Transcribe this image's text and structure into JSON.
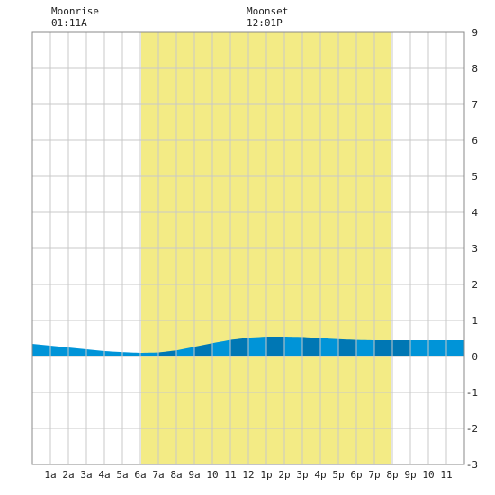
{
  "header": {
    "moonrise_label": "Moonrise",
    "moonrise_time": "01:11A",
    "moonset_label": "Moonset",
    "moonset_time": "12:01P"
  },
  "colors": {
    "daylight": "#f3eb85",
    "tide_light": "#0094d8",
    "tide_dark": "#0077b4",
    "grid": "#c8c8c8",
    "frame": "#888888"
  },
  "chart_data": {
    "type": "area",
    "title": "",
    "xlabel": "",
    "ylabel": "",
    "xlim": [
      0,
      24
    ],
    "ylim": [
      -3,
      9
    ],
    "grid": true,
    "x_tick_labels": [
      {
        "x": 1,
        "label": "1a"
      },
      {
        "x": 2,
        "label": "2a"
      },
      {
        "x": 3,
        "label": "3a"
      },
      {
        "x": 4,
        "label": "4a"
      },
      {
        "x": 5,
        "label": "5a"
      },
      {
        "x": 6,
        "label": "6a"
      },
      {
        "x": 7,
        "label": "7a"
      },
      {
        "x": 8,
        "label": "8a"
      },
      {
        "x": 9,
        "label": "9a"
      },
      {
        "x": 10,
        "label": "10"
      },
      {
        "x": 11,
        "label": "11"
      },
      {
        "x": 12,
        "label": "12"
      },
      {
        "x": 13,
        "label": "1p"
      },
      {
        "x": 14,
        "label": "2p"
      },
      {
        "x": 15,
        "label": "3p"
      },
      {
        "x": 16,
        "label": "4p"
      },
      {
        "x": 17,
        "label": "5p"
      },
      {
        "x": 18,
        "label": "6p"
      },
      {
        "x": 19,
        "label": "7p"
      },
      {
        "x": 20,
        "label": "8p"
      },
      {
        "x": 21,
        "label": "9p"
      },
      {
        "x": 22,
        "label": "10"
      },
      {
        "x": 23,
        "label": "11"
      }
    ],
    "y_ticks": [
      -3,
      -2,
      -1,
      0,
      1,
      2,
      3,
      4,
      5,
      6,
      7,
      8,
      9
    ],
    "daylight": {
      "start": 6.05,
      "end": 19.95
    },
    "moonrise_x": 1.18,
    "moonset_x": 12.0,
    "tide_height": [
      {
        "x": 0,
        "y": 0.35
      },
      {
        "x": 1,
        "y": 0.3
      },
      {
        "x": 2,
        "y": 0.25
      },
      {
        "x": 3,
        "y": 0.2
      },
      {
        "x": 4,
        "y": 0.15
      },
      {
        "x": 5,
        "y": 0.12
      },
      {
        "x": 6,
        "y": 0.1
      },
      {
        "x": 7,
        "y": 0.11
      },
      {
        "x": 8,
        "y": 0.17
      },
      {
        "x": 9,
        "y": 0.27
      },
      {
        "x": 10,
        "y": 0.37
      },
      {
        "x": 11,
        "y": 0.46
      },
      {
        "x": 12,
        "y": 0.52
      },
      {
        "x": 13,
        "y": 0.55
      },
      {
        "x": 14,
        "y": 0.55
      },
      {
        "x": 15,
        "y": 0.54
      },
      {
        "x": 16,
        "y": 0.51
      },
      {
        "x": 17,
        "y": 0.48
      },
      {
        "x": 18,
        "y": 0.46
      },
      {
        "x": 19,
        "y": 0.45
      },
      {
        "x": 20,
        "y": 0.45
      },
      {
        "x": 21,
        "y": 0.45
      },
      {
        "x": 22,
        "y": 0.45
      },
      {
        "x": 23,
        "y": 0.45
      },
      {
        "x": 24,
        "y": 0.45
      }
    ]
  }
}
